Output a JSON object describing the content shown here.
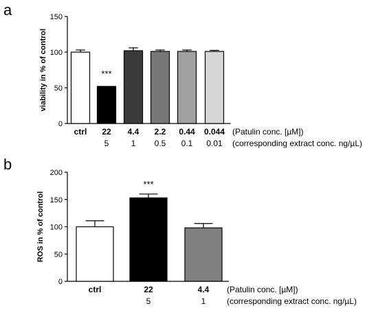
{
  "chart_data": [
    {
      "type": "bar",
      "panel_letter": "a",
      "ylabel": "viability in % of control",
      "ylim": [
        0,
        150
      ],
      "yticks": [
        0,
        50,
        100,
        150
      ],
      "categories": [
        "ctrl",
        "22",
        "4.4",
        "2.2",
        "0.44",
        "0.044"
      ],
      "sub_categories": [
        "",
        "5",
        "1",
        "0.5",
        "0.1",
        "0.01"
      ],
      "category_note": "(Patulin conc. [µM])",
      "sub_category_note": "(corresponding extract conc. ng/µL)",
      "values": [
        100,
        52,
        102,
        101,
        101,
        101
      ],
      "errors": [
        3,
        0,
        4,
        2,
        2,
        1.5
      ],
      "colors": [
        "#ffffff",
        "#000000",
        "#3a3a3a",
        "#777777",
        "#a0a0a0",
        "#d6d6d6"
      ],
      "annotations": [
        {
          "category": "22",
          "text": "***"
        }
      ],
      "grid": false
    },
    {
      "type": "bar",
      "panel_letter": "b",
      "ylabel": "ROS in % of control",
      "ylim": [
        0,
        200
      ],
      "yticks": [
        0,
        50,
        100,
        150,
        200
      ],
      "categories": [
        "ctrl",
        "22",
        "4.4"
      ],
      "sub_categories": [
        "",
        "5",
        "1"
      ],
      "category_note": "(Patulin conc. [µM])",
      "sub_category_note": "(corresponding extract conc. ng/µL)",
      "values": [
        100,
        153,
        98
      ],
      "errors": [
        11,
        7,
        8
      ],
      "colors": [
        "#ffffff",
        "#000000",
        "#808080"
      ],
      "annotations": [
        {
          "category": "22",
          "text": "***"
        }
      ],
      "grid": false
    }
  ]
}
